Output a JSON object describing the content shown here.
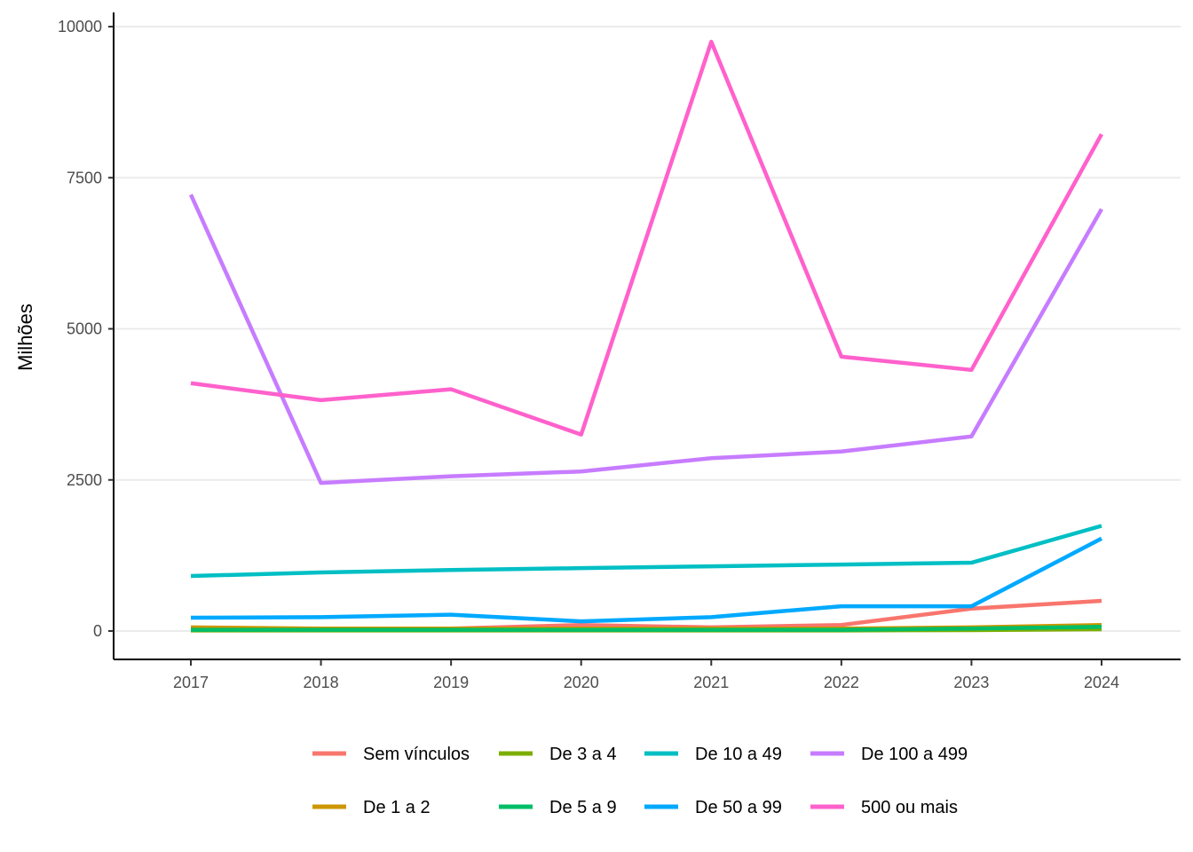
{
  "chart_data": {
    "type": "line",
    "title": "",
    "xlabel": "",
    "ylabel": "Milhões",
    "x": [
      "2017",
      "2018",
      "2019",
      "2020",
      "2021",
      "2022",
      "2023",
      "2024"
    ],
    "ylim": [
      -450,
      10250
    ],
    "yticks": [
      0,
      2500,
      5000,
      7500,
      10000
    ],
    "ytick_labels": [
      "0",
      "2500",
      "5000",
      "7500",
      "10000"
    ],
    "grid": "horizontal major",
    "legend_position": "bottom",
    "series": [
      {
        "name": "Sem vínculos",
        "color": "#F8766D",
        "values": [
          30,
          30,
          40,
          100,
          60,
          100,
          370,
          500
        ]
      },
      {
        "name": "De 1 a 2",
        "color": "#CD9600",
        "values": [
          60,
          40,
          40,
          40,
          40,
          40,
          60,
          100
        ]
      },
      {
        "name": "De 3 a 4",
        "color": "#7CAE00",
        "values": [
          10,
          10,
          10,
          10,
          10,
          10,
          15,
          30
        ]
      },
      {
        "name": "De 5 a 9",
        "color": "#00BE67",
        "values": [
          20,
          20,
          20,
          20,
          20,
          20,
          40,
          70
        ]
      },
      {
        "name": "De 10 a 49",
        "color": "#00BFC4",
        "values": [
          910,
          970,
          1010,
          1040,
          1070,
          1100,
          1130,
          1740
        ]
      },
      {
        "name": "De 50 a 99",
        "color": "#00A9FF",
        "values": [
          220,
          230,
          270,
          160,
          230,
          410,
          410,
          1530
        ]
      },
      {
        "name": "De 100 a 499",
        "color": "#C77CFF",
        "values": [
          7220,
          2450,
          2560,
          2640,
          2860,
          2970,
          3220,
          6980
        ]
      },
      {
        "name": "500 ou mais",
        "color": "#FF61CC",
        "values": [
          4100,
          3820,
          4000,
          3250,
          9750,
          4540,
          4320,
          8220
        ]
      }
    ]
  }
}
